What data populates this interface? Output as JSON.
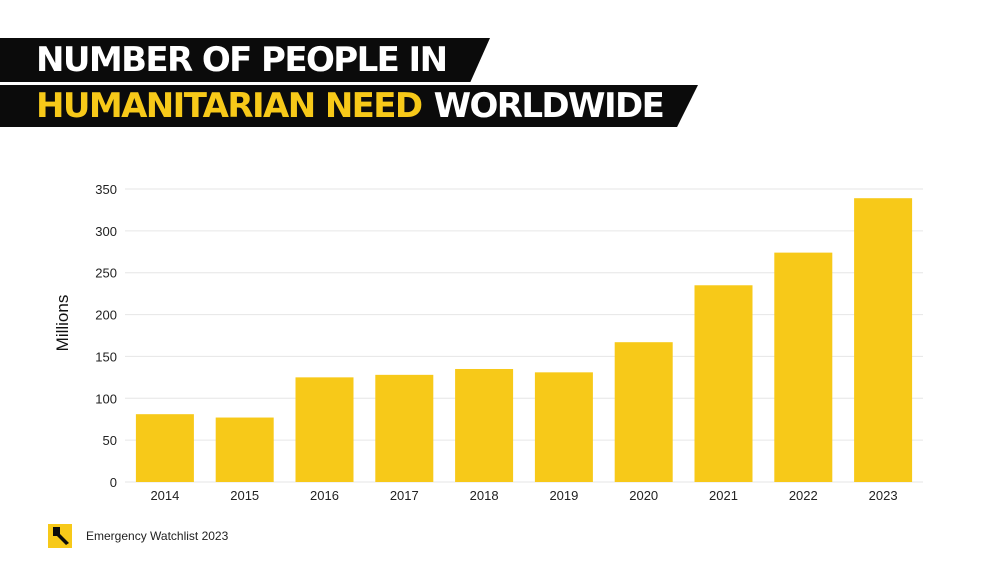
{
  "header": {
    "line1": "NUMBER OF PEOPLE IN",
    "line2_highlight": "HUMANITARIAN NEED",
    "line2_rest": "WORLDWIDE"
  },
  "colors": {
    "bar": "#f7c919",
    "banner": "#0b0b0b",
    "grid": "#e6e6e6"
  },
  "chart_data": {
    "type": "bar",
    "categories": [
      "2014",
      "2015",
      "2016",
      "2017",
      "2018",
      "2019",
      "2020",
      "2021",
      "2022",
      "2023"
    ],
    "values": [
      81,
      77,
      125,
      128,
      135,
      131,
      167,
      235,
      274,
      339
    ],
    "ylabel": "Millions",
    "xlabel": "",
    "ylim": [
      0,
      350
    ],
    "yticks": [
      0,
      50,
      100,
      150,
      200,
      250,
      300,
      350
    ],
    "grid": true
  },
  "footer": {
    "logo_icon": "irc-logo-icon",
    "source": "Emergency Watchlist 2023"
  }
}
